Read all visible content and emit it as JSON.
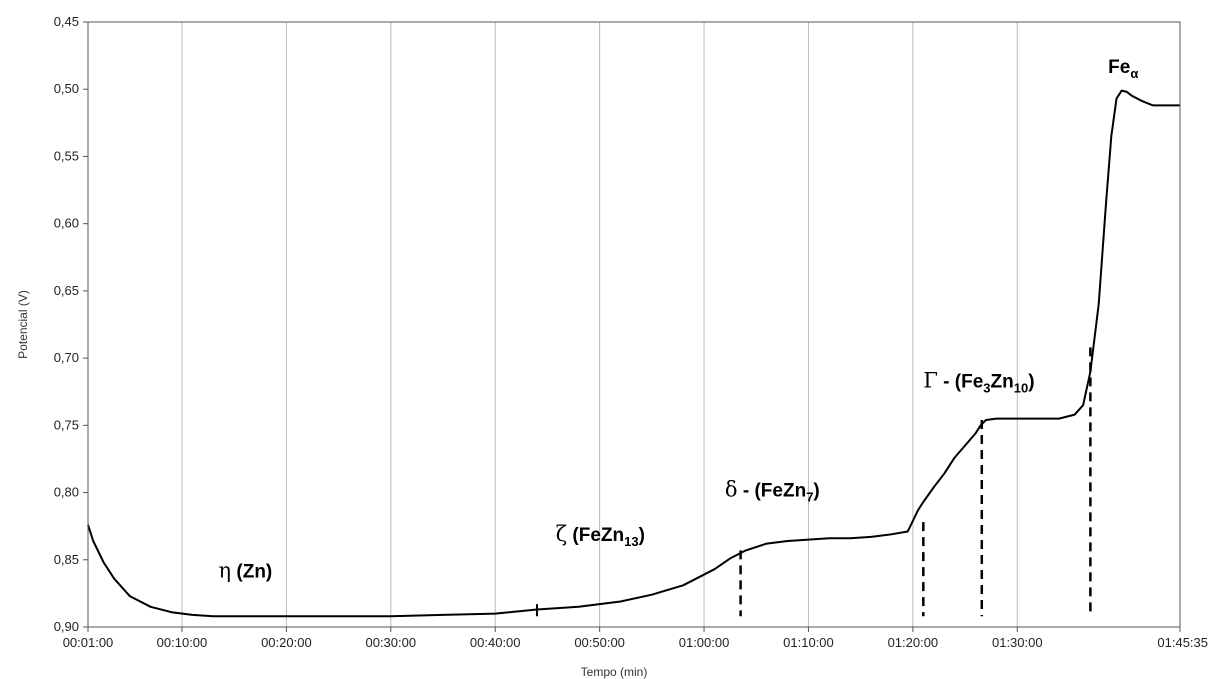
{
  "chart_data": {
    "type": "line",
    "xlabel": "Tempo (min)",
    "ylabel": "Potencial (V)",
    "y_inverted": true,
    "ylim": [
      0.45,
      0.9
    ],
    "xlim_min": [
      1,
      105.583
    ],
    "grid": "vertical",
    "y_ticks": [
      0.45,
      0.5,
      0.55,
      0.6,
      0.65,
      0.7,
      0.75,
      0.8,
      0.85,
      0.9
    ],
    "y_tick_labels": [
      "0,45",
      "0,50",
      "0,55",
      "0,60",
      "0,65",
      "0,70",
      "0,75",
      "0,80",
      "0,85",
      "0,90"
    ],
    "x_ticks_min": [
      1,
      10,
      20,
      30,
      40,
      50,
      60,
      70,
      80,
      90,
      105.583
    ],
    "x_tick_labels": [
      "00:01:00",
      "00:10:00",
      "00:20:00",
      "00:30:00",
      "00:40:00",
      "00:50:00",
      "01:00:00",
      "01:10:00",
      "01:20:00",
      "01:30:00",
      "01:45:35"
    ],
    "series": [
      {
        "x": [
          1,
          1.5,
          2.5,
          3.5,
          5,
          7,
          9,
          11,
          13,
          15,
          20,
          25,
          30,
          35,
          40,
          44,
          48,
          52,
          55,
          58,
          61,
          62.5,
          64,
          66,
          68,
          70,
          72,
          74,
          76,
          78,
          79.5,
          80,
          80.5,
          81,
          82,
          83,
          84,
          85,
          86,
          86.5,
          87,
          88,
          90,
          92,
          94,
          95.5,
          96.3,
          97,
          97.8,
          98.5,
          99,
          99.5,
          100,
          100.5,
          101,
          102,
          103,
          105.583
        ],
        "y": [
          0.824,
          0.836,
          0.852,
          0.864,
          0.877,
          0.885,
          0.889,
          0.891,
          0.892,
          0.892,
          0.892,
          0.892,
          0.892,
          0.891,
          0.89,
          0.887,
          0.885,
          0.881,
          0.876,
          0.869,
          0.857,
          0.849,
          0.843,
          0.838,
          0.836,
          0.835,
          0.834,
          0.834,
          0.833,
          0.831,
          0.829,
          0.821,
          0.813,
          0.807,
          0.796,
          0.786,
          0.774,
          0.765,
          0.756,
          0.75,
          0.746,
          0.745,
          0.745,
          0.745,
          0.745,
          0.742,
          0.735,
          0.71,
          0.66,
          0.585,
          0.535,
          0.507,
          0.501,
          0.502,
          0.505,
          0.509,
          0.512,
          0.512
        ]
      }
    ],
    "markers": [
      {
        "x": 63.5,
        "from": 0.843,
        "to": 0.892
      },
      {
        "x": 81.0,
        "from": 0.822,
        "to": 0.892
      },
      {
        "x": 86.6,
        "from": 0.746,
        "to": 0.892
      },
      {
        "x": 97.0,
        "from": 0.692,
        "to": 0.892
      }
    ],
    "annotations": [
      {
        "symbol": "η",
        "text": " (Zn)",
        "sub": "",
        "after": "",
        "x": 13.5,
        "y": 0.863
      },
      {
        "symbol": "ζ",
        "text": " (FeZn",
        "sub": "13",
        "after": ")",
        "x": 45.8,
        "y": 0.836
      },
      {
        "symbol": "δ",
        "text": " - (FeZn",
        "sub": "7",
        "after": ")",
        "x": 62.0,
        "y": 0.803
      },
      {
        "symbol": "Γ",
        "text": " - (Fe",
        "sub": "3",
        "after": "",
        "sub2": "10",
        "mid": "Zn",
        "x": 81.0,
        "y": 0.722
      },
      {
        "symbol": "",
        "text": "Fe",
        "sub": "α",
        "after": "",
        "x": 98.7,
        "y": 0.488
      }
    ]
  }
}
